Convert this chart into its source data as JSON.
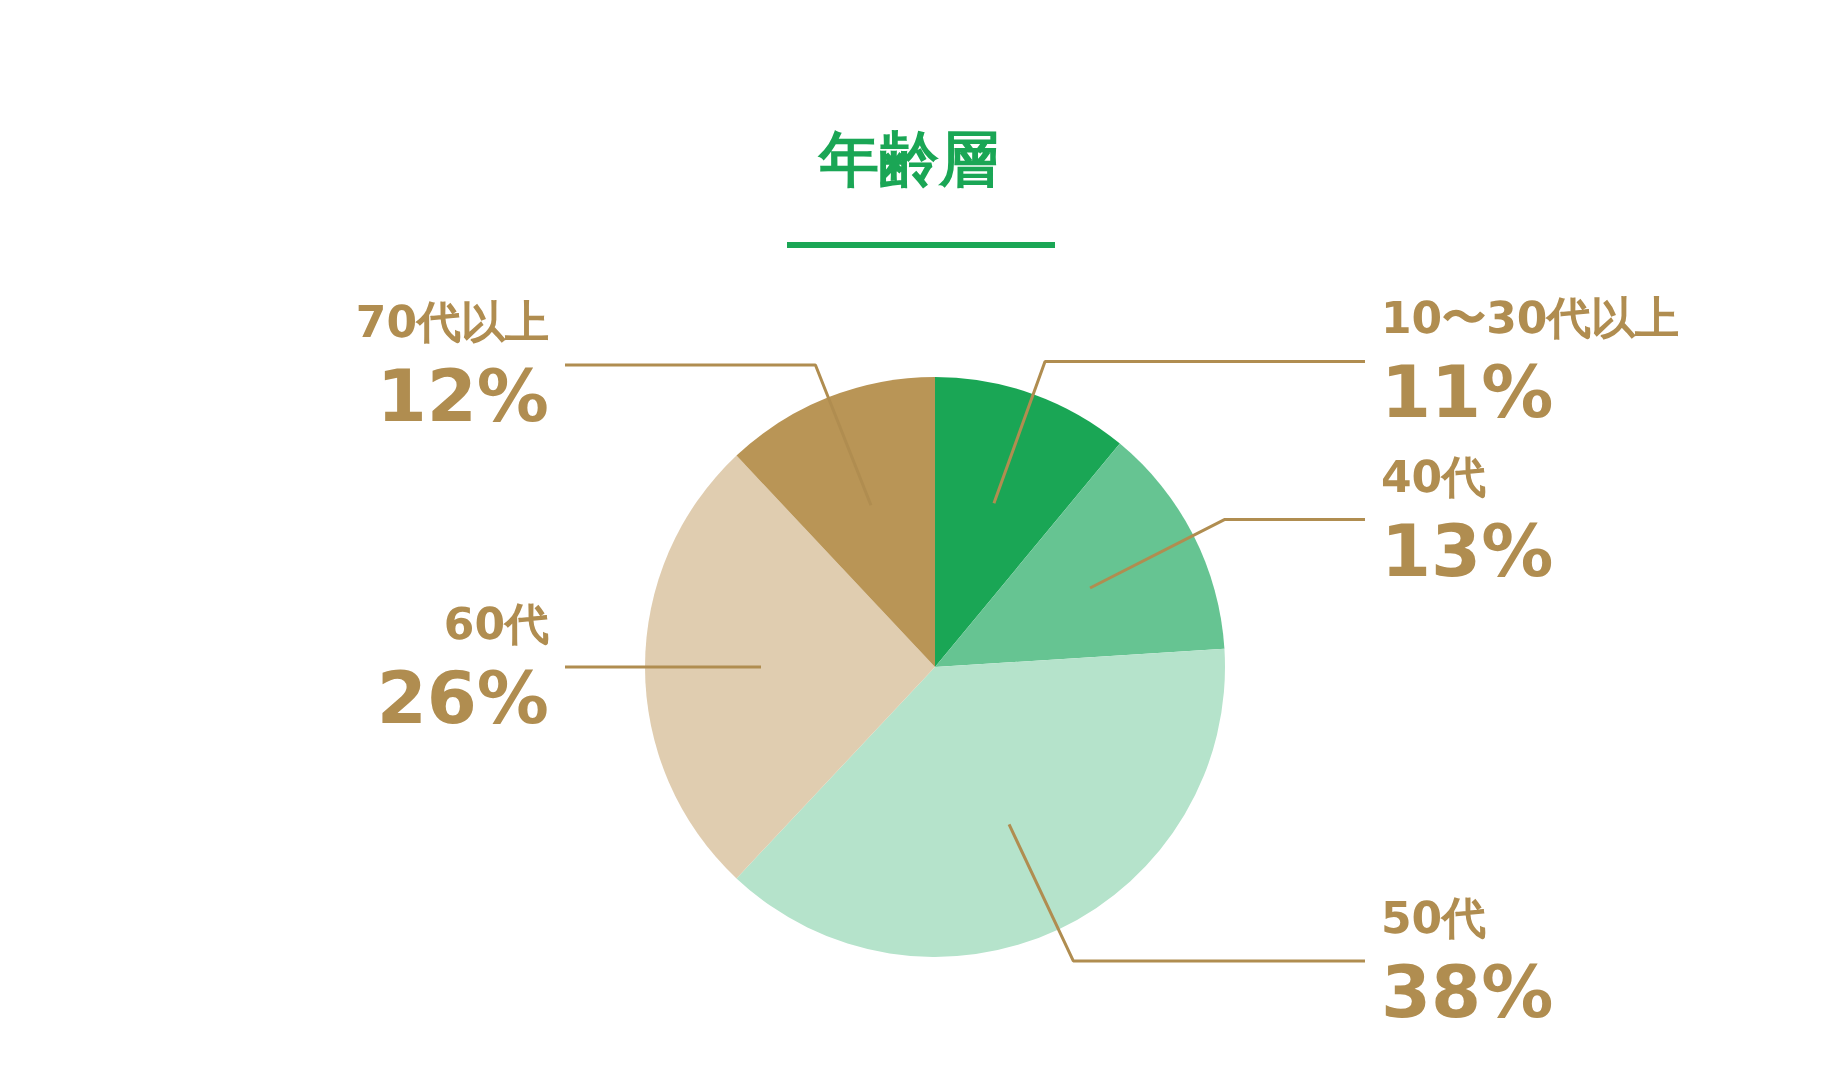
{
  "chart_data": {
    "type": "pie",
    "title": "年齢層",
    "categories": [
      "10〜30代以上",
      "40代",
      "50代",
      "60代",
      "70代以上"
    ],
    "values": [
      11,
      13,
      38,
      26,
      12
    ],
    "value_labels": [
      "11%",
      "13%",
      "38%",
      "26%",
      "12%"
    ],
    "colors": [
      "#1aa655",
      "#66c492",
      "#b5e3cb",
      "#e0cdb0",
      "#b99556"
    ]
  }
}
